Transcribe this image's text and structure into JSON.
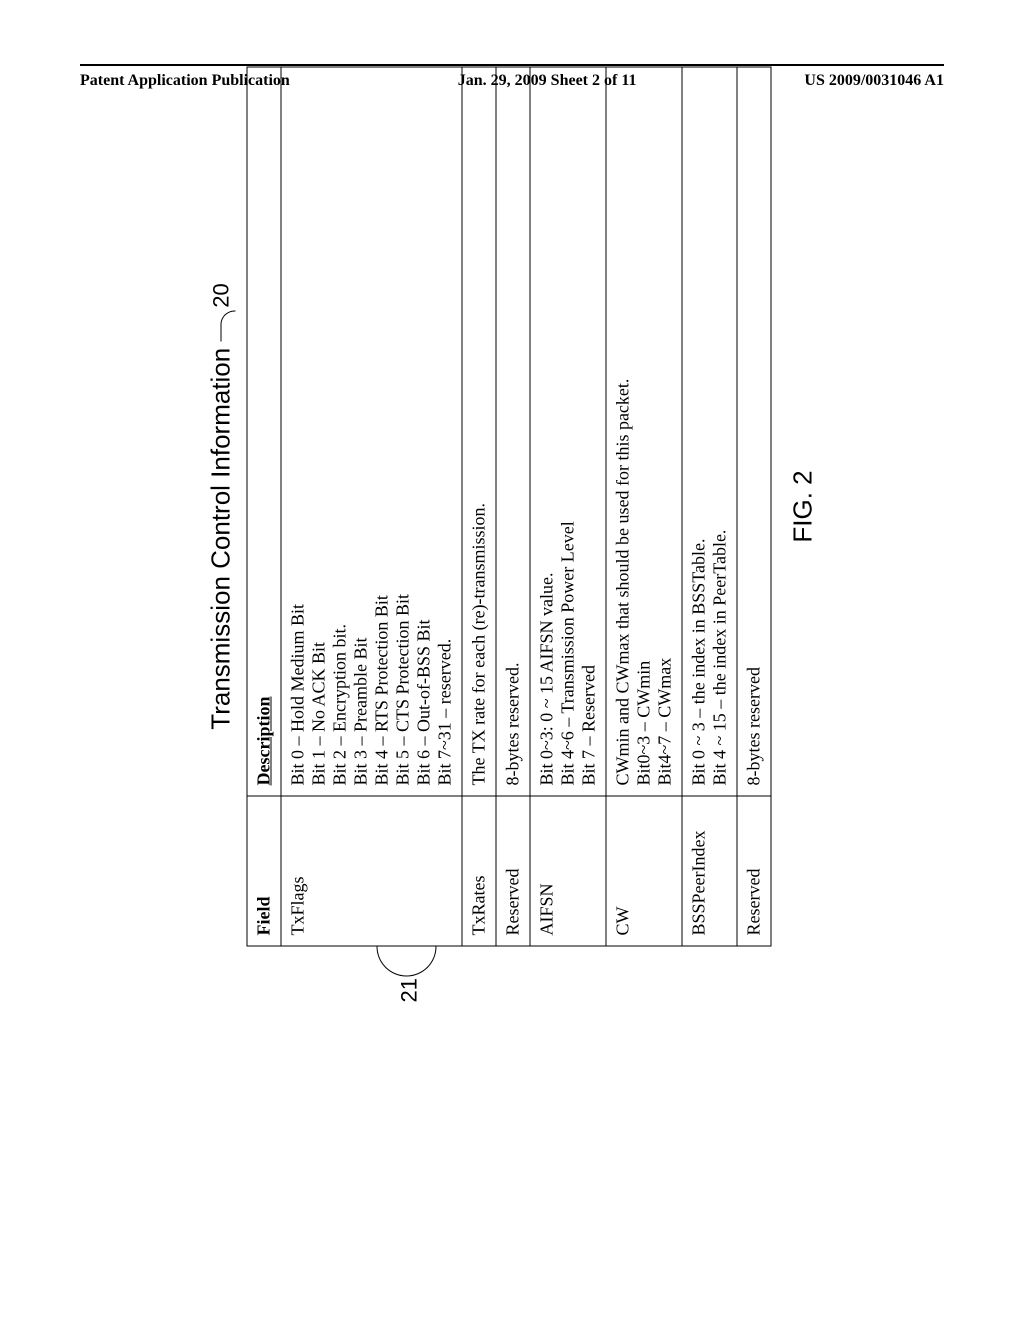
{
  "header": {
    "left": "Patent Application Publication",
    "center": "Jan. 29, 2009  Sheet 2 of 11",
    "right": "US 2009/0031046 A1"
  },
  "figure": {
    "title": "Transmission Control Information",
    "ref20": "20",
    "ref21": "21",
    "caption": "FIG. 2",
    "columns": {
      "field": "Field",
      "description": "Description"
    },
    "rows": [
      {
        "field": "TxFlags",
        "desc": [
          "Bit 0 – Hold Medium Bit",
          "Bit 1 – No ACK Bit",
          "Bit 2 – Encryption bit.",
          "Bit 3 – Preamble Bit",
          "Bit 4 – RTS Protection Bit",
          "Bit 5 – CTS Protection Bit",
          "Bit 6 – Out-of-BSS Bit",
          "Bit 7~31 – reserved."
        ]
      },
      {
        "field": "TxRates",
        "desc": [
          "The TX rate for each (re)-transmission."
        ]
      },
      {
        "field": "Reserved",
        "desc": [
          "8-bytes reserved."
        ]
      },
      {
        "field": "AIFSN",
        "desc": [
          "Bit 0~3: 0 ~ 15 AIFSN value.",
          "Bit 4~6 – Transmission Power Level",
          "Bit 7 – Reserved"
        ]
      },
      {
        "field": "CW",
        "desc": [
          "CWmin and CWmax that should be used for this packet.",
          "Bit0~3 – CWmin",
          "Bit4~7 – CWmax"
        ]
      },
      {
        "field": "BSSPeerIndex",
        "desc": [
          "Bit 0 ~ 3 – the index in BSSTable.",
          "Bit 4 ~ 15 – the index in PeerTable."
        ]
      },
      {
        "field": "Reserved",
        "desc": [
          "8-bytes reserved"
        ]
      }
    ]
  }
}
